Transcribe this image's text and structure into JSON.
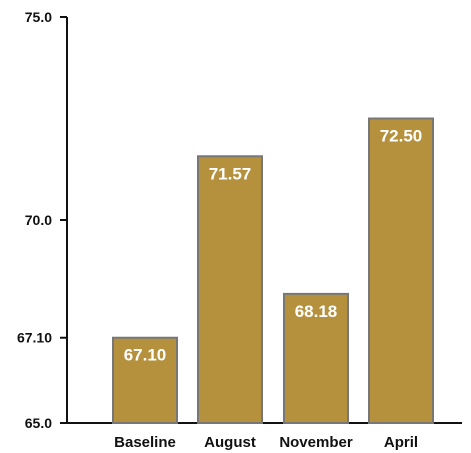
{
  "chart_data": {
    "type": "bar",
    "title": "",
    "xlabel": "",
    "ylabel": "",
    "categories": [
      "Baseline",
      "August",
      "November",
      "April"
    ],
    "values": [
      67.1,
      71.57,
      68.18,
      72.5
    ],
    "data_labels": [
      "67.10",
      "71.57",
      "68.18",
      "72.50"
    ],
    "ylim": [
      65.0,
      75.0
    ],
    "y_ticks": [
      {
        "value": 65.0,
        "label": "65.0"
      },
      {
        "value": 67.1,
        "label": "67.10"
      },
      {
        "value": 70.0,
        "label": "70.0"
      },
      {
        "value": 75.0,
        "label": "75.0"
      }
    ],
    "grid": false,
    "legend": "none",
    "colors": {
      "bar_fill": "#b5913e",
      "bar_stroke": "#777777",
      "axis": "#111111",
      "data_label": "#ffffff",
      "text": "#111111"
    }
  }
}
